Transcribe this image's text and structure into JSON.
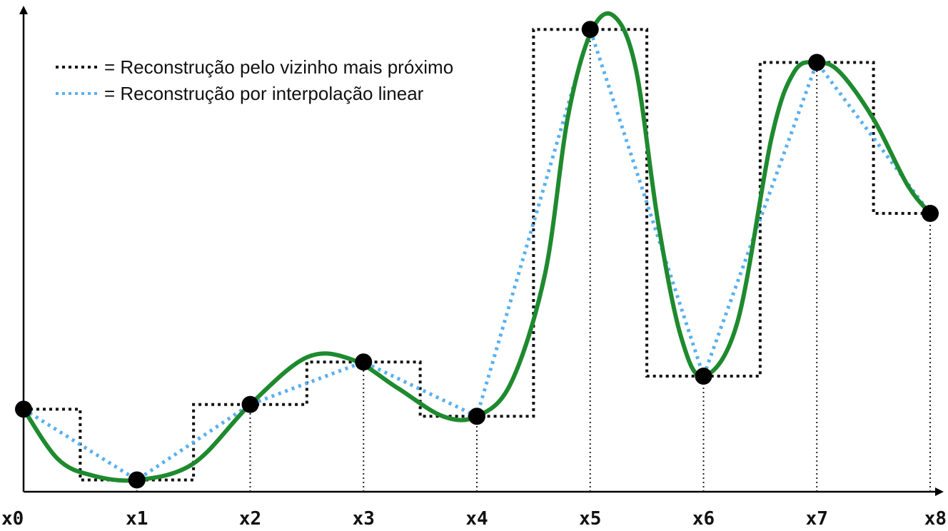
{
  "chart_data": {
    "type": "line",
    "title": "",
    "xlabel": "",
    "ylabel": "",
    "categories": [
      "x0",
      "x1",
      "x2",
      "x3",
      "x4",
      "x5",
      "x6",
      "x7",
      "x8"
    ],
    "ylim": [
      0,
      100
    ],
    "samples": [
      17.5,
      2.5,
      18.5,
      27.5,
      16,
      98,
      24.5,
      91,
      59
    ],
    "smooth_curve": {
      "x": [
        0,
        0.3,
        0.6,
        1,
        1.5,
        2,
        2.5,
        2.9,
        3.3,
        3.7,
        4,
        4.3,
        4.6,
        4.8,
        5,
        5.2,
        5.4,
        5.6,
        5.8,
        6,
        6.3,
        6.6,
        6.8,
        7,
        7.2,
        7.5,
        7.8,
        8
      ],
      "y": [
        17.5,
        7,
        3.5,
        2.5,
        6,
        18.5,
        28.5,
        28,
        22,
        16,
        16,
        23,
        46,
        79,
        97,
        101,
        90,
        57,
        33,
        24.5,
        36,
        75,
        89,
        91,
        89,
        79,
        65,
        59
      ]
    },
    "legend": {
      "position": "top-left",
      "entries": [
        "= Reconstrução pelo vizinho mais próximo",
        "= Reconstrução por interpolação linear"
      ]
    },
    "colors": {
      "signal": "#1e8a2e",
      "nearest_neighbor": "#111111",
      "linear": "#5ab0f0",
      "sample_point": "#000000",
      "axis": "#000000"
    }
  }
}
